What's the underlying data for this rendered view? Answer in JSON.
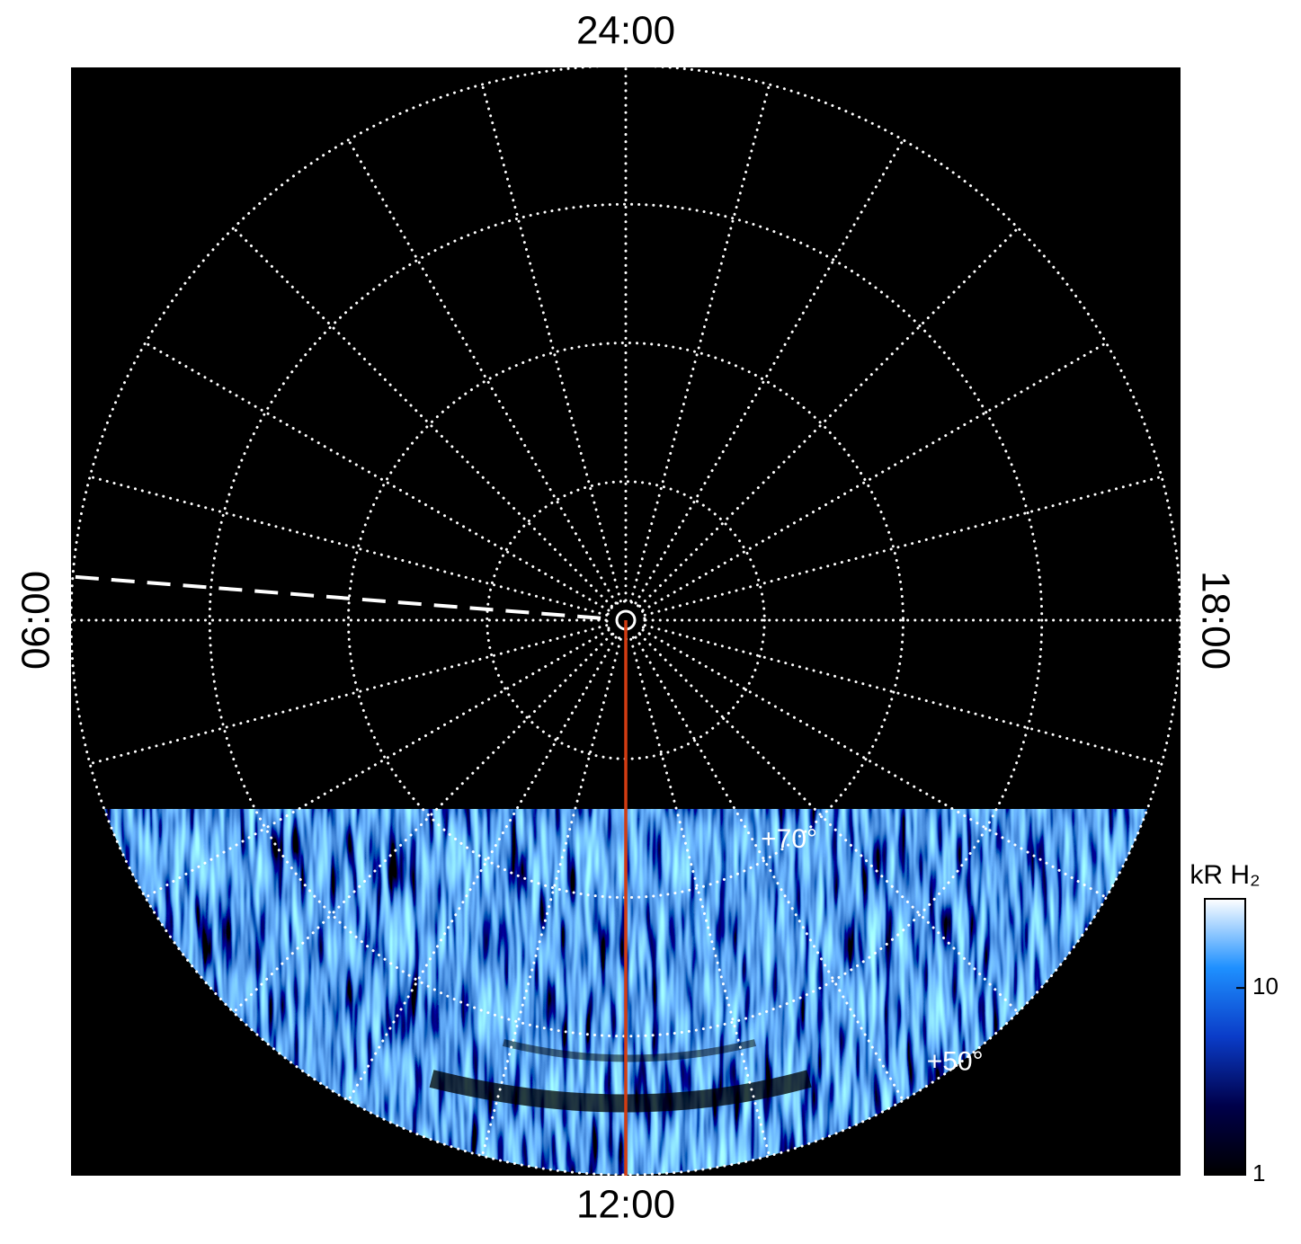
{
  "chart_data": {
    "type": "polar_image",
    "lat_range": [
      90,
      50
    ],
    "lat_circles": [
      80,
      70,
      60,
      50
    ],
    "meridians_lt": [
      0,
      1,
      2,
      3,
      4,
      5,
      6,
      7,
      8,
      9,
      10,
      11,
      12,
      13,
      14,
      15,
      16,
      17,
      18,
      19,
      20,
      21,
      22,
      23
    ],
    "lt_labels": [
      {
        "value": 0,
        "label": "24:00"
      },
      {
        "value": 6,
        "label": "06:00"
      },
      {
        "value": 12,
        "label": "12:00"
      },
      {
        "value": 18,
        "label": "18:00"
      }
    ],
    "lat_labels": [
      {
        "value": 70,
        "label": "+70°"
      },
      {
        "value": 50,
        "label": "+50°"
      }
    ],
    "lat_label_lt": 14.45,
    "reference_lines": [
      {
        "lt": 12,
        "color": "#d23c12",
        "style": "solid"
      },
      {
        "lt": 5.7,
        "color": "#ffffff",
        "style": "dashed"
      }
    ],
    "grid_color": "#ffffff",
    "background": "#000000",
    "colorbar": {
      "label": "kR H₂",
      "scale": "log",
      "lim": [
        1,
        30
      ],
      "ticks": [
        1,
        10
      ],
      "colormap": [
        "#000000",
        "#00004a",
        "#0a3cc8",
        "#1e90ff",
        "#ffffff"
      ]
    }
  }
}
